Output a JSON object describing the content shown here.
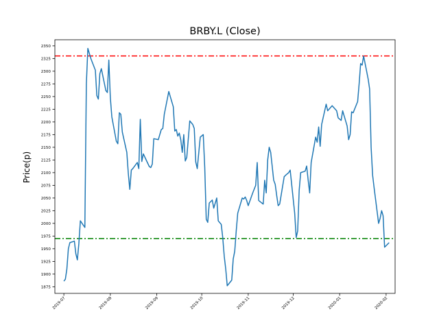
{
  "chart_data": {
    "type": "line",
    "title": "BRBY.L (Close)",
    "xlabel": "",
    "ylabel": "Price(p)",
    "xlim": [
      "2019-06-25",
      "2020-02-07"
    ],
    "ylim": [
      1862,
      2362
    ],
    "x_ticks": [
      "2019-07",
      "2019-08",
      "2019-09",
      "2019-10",
      "2019-11",
      "2019-12",
      "2020-01",
      "2020-02"
    ],
    "y_ticks": [
      1875,
      1900,
      1925,
      1950,
      1975,
      2000,
      2025,
      2050,
      2075,
      2100,
      2125,
      2150,
      2175,
      2200,
      2225,
      2250,
      2275,
      2300,
      2325,
      2350
    ],
    "grid": false,
    "reference_lines": [
      {
        "y": 2330,
        "color": "#ff0000",
        "style": "dashdot"
      },
      {
        "y": 1970,
        "color": "#008000",
        "style": "dashdot"
      }
    ],
    "series": [
      {
        "color": "#1f77b4",
        "points": [
          [
            "2019-07-01",
            1886
          ],
          [
            "2019-07-02",
            1890
          ],
          [
            "2019-07-03",
            1910
          ],
          [
            "2019-07-04",
            1950
          ],
          [
            "2019-07-05",
            1962
          ],
          [
            "2019-07-08",
            1965
          ],
          [
            "2019-07-09",
            1940
          ],
          [
            "2019-07-10",
            1928
          ],
          [
            "2019-07-11",
            1960
          ],
          [
            "2019-07-12",
            2005
          ],
          [
            "2019-07-15",
            1992
          ],
          [
            "2019-07-16",
            2275
          ],
          [
            "2019-07-17",
            2345
          ],
          [
            "2019-07-18",
            2335
          ],
          [
            "2019-07-19",
            2325
          ],
          [
            "2019-07-22",
            2302
          ],
          [
            "2019-07-23",
            2252
          ],
          [
            "2019-07-24",
            2245
          ],
          [
            "2019-07-25",
            2295
          ],
          [
            "2019-07-26",
            2305
          ],
          [
            "2019-07-29",
            2262
          ],
          [
            "2019-07-30",
            2258
          ],
          [
            "2019-07-31",
            2322
          ],
          [
            "2019-08-01",
            2248
          ],
          [
            "2019-08-02",
            2210
          ],
          [
            "2019-08-05",
            2162
          ],
          [
            "2019-08-06",
            2157
          ],
          [
            "2019-08-07",
            2218
          ],
          [
            "2019-08-08",
            2215
          ],
          [
            "2019-08-09",
            2180
          ],
          [
            "2019-08-12",
            2140
          ],
          [
            "2019-08-13",
            2098
          ],
          [
            "2019-08-14",
            2067
          ],
          [
            "2019-08-15",
            2105
          ],
          [
            "2019-08-16",
            2108
          ],
          [
            "2019-08-19",
            2120
          ],
          [
            "2019-08-20",
            2108
          ],
          [
            "2019-08-21",
            2205
          ],
          [
            "2019-08-22",
            2122
          ],
          [
            "2019-08-23",
            2137
          ],
          [
            "2019-08-27",
            2112
          ],
          [
            "2019-08-28",
            2110
          ],
          [
            "2019-08-29",
            2117
          ],
          [
            "2019-08-30",
            2167
          ],
          [
            "2019-09-02",
            2165
          ],
          [
            "2019-09-03",
            2175
          ],
          [
            "2019-09-04",
            2185
          ],
          [
            "2019-09-05",
            2187
          ],
          [
            "2019-09-06",
            2215
          ],
          [
            "2019-09-09",
            2260
          ],
          [
            "2019-09-12",
            2230
          ],
          [
            "2019-09-13",
            2182
          ],
          [
            "2019-09-14",
            2185
          ],
          [
            "2019-09-15",
            2172
          ],
          [
            "2019-09-16",
            2178
          ],
          [
            "2019-09-17",
            2165
          ],
          [
            "2019-09-18",
            2140
          ],
          [
            "2019-09-19",
            2175
          ],
          [
            "2019-09-20",
            2123
          ],
          [
            "2019-09-21",
            2130
          ],
          [
            "2019-09-23",
            2202
          ],
          [
            "2019-09-25",
            2195
          ],
          [
            "2019-09-26",
            2187
          ],
          [
            "2019-09-27",
            2121
          ],
          [
            "2019-09-28",
            2108
          ],
          [
            "2019-09-30",
            2170
          ],
          [
            "2019-10-02",
            2175
          ],
          [
            "2019-10-03",
            2110
          ],
          [
            "2019-10-04",
            2008
          ],
          [
            "2019-10-05",
            2002
          ],
          [
            "2019-10-06",
            2040
          ],
          [
            "2019-10-08",
            2046
          ],
          [
            "2019-10-09",
            2030
          ],
          [
            "2019-10-11",
            2050
          ],
          [
            "2019-10-12",
            2005
          ],
          [
            "2019-10-14",
            1998
          ],
          [
            "2019-10-15",
            1972
          ],
          [
            "2019-10-16",
            1935
          ],
          [
            "2019-10-17",
            1910
          ],
          [
            "2019-10-18",
            1877
          ],
          [
            "2019-10-21",
            1888
          ],
          [
            "2019-10-22",
            1930
          ],
          [
            "2019-10-23",
            1945
          ],
          [
            "2019-10-24",
            1985
          ],
          [
            "2019-10-25",
            2020
          ],
          [
            "2019-10-28",
            2050
          ],
          [
            "2019-10-29",
            2048
          ],
          [
            "2019-10-30",
            2052
          ],
          [
            "2019-10-31",
            2045
          ],
          [
            "2019-11-01",
            2035
          ],
          [
            "2019-11-04",
            2060
          ],
          [
            "2019-11-06",
            2075
          ],
          [
            "2019-11-07",
            2120
          ],
          [
            "2019-11-08",
            2045
          ],
          [
            "2019-11-11",
            2038
          ],
          [
            "2019-11-12",
            2085
          ],
          [
            "2019-11-13",
            2060
          ],
          [
            "2019-11-14",
            2125
          ],
          [
            "2019-11-15",
            2150
          ],
          [
            "2019-11-16",
            2140
          ],
          [
            "2019-11-18",
            2085
          ],
          [
            "2019-11-19",
            2077
          ],
          [
            "2019-11-20",
            2055
          ],
          [
            "2019-11-21",
            2035
          ],
          [
            "2019-11-22",
            2038
          ],
          [
            "2019-11-25",
            2092
          ],
          [
            "2019-11-26",
            2095
          ],
          [
            "2019-11-28",
            2100
          ],
          [
            "2019-11-29",
            2105
          ],
          [
            "2019-12-02",
            2020
          ],
          [
            "2019-12-03",
            1972
          ],
          [
            "2019-12-04",
            1985
          ],
          [
            "2019-12-05",
            2065
          ],
          [
            "2019-12-06",
            2100
          ],
          [
            "2019-12-09",
            2103
          ],
          [
            "2019-12-10",
            2113
          ],
          [
            "2019-12-11",
            2085
          ],
          [
            "2019-12-12",
            2060
          ],
          [
            "2019-12-13",
            2120
          ],
          [
            "2019-12-16",
            2170
          ],
          [
            "2019-12-17",
            2160
          ],
          [
            "2019-12-18",
            2190
          ],
          [
            "2019-12-19",
            2152
          ],
          [
            "2019-12-20",
            2195
          ],
          [
            "2019-12-23",
            2235
          ],
          [
            "2019-12-24",
            2222
          ],
          [
            "2019-12-27",
            2232
          ],
          [
            "2019-12-30",
            2222
          ],
          [
            "2019-12-31",
            2208
          ],
          [
            "2020-01-02",
            2203
          ],
          [
            "2020-01-03",
            2222
          ],
          [
            "2020-01-06",
            2192
          ],
          [
            "2020-01-07",
            2165
          ],
          [
            "2020-01-08",
            2175
          ],
          [
            "2020-01-09",
            2220
          ],
          [
            "2020-01-10",
            2218
          ],
          [
            "2020-01-13",
            2240
          ],
          [
            "2020-01-14",
            2275
          ],
          [
            "2020-01-15",
            2315
          ],
          [
            "2020-01-16",
            2312
          ],
          [
            "2020-01-17",
            2330
          ],
          [
            "2020-01-20",
            2285
          ],
          [
            "2020-01-21",
            2265
          ],
          [
            "2020-01-22",
            2150
          ],
          [
            "2020-01-23",
            2095
          ],
          [
            "2020-01-24",
            2070
          ],
          [
            "2020-01-27",
            2000
          ],
          [
            "2020-01-28",
            2010
          ],
          [
            "2020-01-29",
            2025
          ],
          [
            "2020-01-30",
            2015
          ],
          [
            "2020-01-31",
            1953
          ],
          [
            "2020-02-03",
            1962
          ]
        ]
      }
    ]
  }
}
